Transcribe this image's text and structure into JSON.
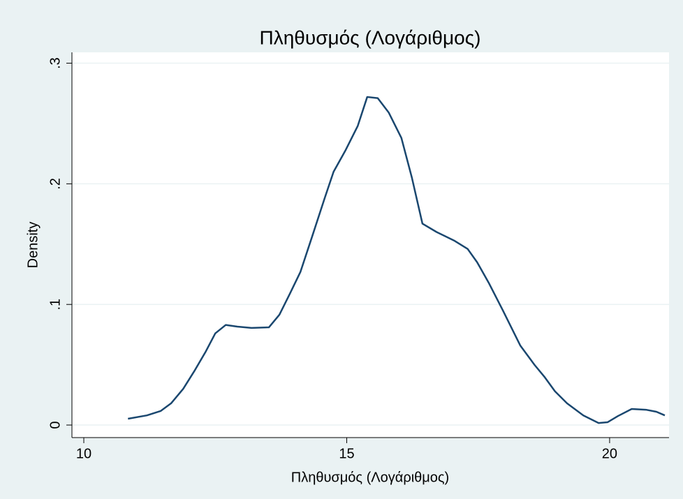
{
  "chart_data": {
    "type": "line",
    "title": "Πληθυσμός (Λογάριθμος)",
    "x_label": "Πληθυσμός (Λογάριθμος)",
    "y_label": "Density",
    "x": [
      10.84,
      11.2,
      11.46,
      11.66,
      11.89,
      12.1,
      12.32,
      12.5,
      12.7,
      12.92,
      13.19,
      13.52,
      13.72,
      13.92,
      14.12,
      14.34,
      14.58,
      14.75,
      14.98,
      15.21,
      15.39,
      15.59,
      15.8,
      16.04,
      16.24,
      16.44,
      16.71,
      17.04,
      17.3,
      17.48,
      17.7,
      17.97,
      18.3,
      18.57,
      18.76,
      18.96,
      19.19,
      19.5,
      19.79,
      19.96,
      20.16,
      20.42,
      20.69,
      20.89,
      21.05
    ],
    "series": [
      {
        "name": "Density",
        "color": "#1a476f",
        "values": [
          0.0052,
          0.008,
          0.0116,
          0.018,
          0.03,
          0.0446,
          0.061,
          0.076,
          0.083,
          0.0816,
          0.0805,
          0.081,
          0.0915,
          0.109,
          0.127,
          0.156,
          0.188,
          0.21,
          0.228,
          0.248,
          0.272,
          0.271,
          0.259,
          0.238,
          0.205,
          0.167,
          0.16,
          0.153,
          0.146,
          0.135,
          0.118,
          0.095,
          0.066,
          0.05,
          0.04,
          0.028,
          0.018,
          0.008,
          0.0017,
          0.0023,
          0.0075,
          0.0133,
          0.0127,
          0.011,
          0.008
        ]
      }
    ],
    "xlim": [
      9.774,
      21.13
    ],
    "ylim": [
      -0.0104,
      0.309
    ],
    "xticks": [
      10,
      15,
      20
    ],
    "yticks": [
      0,
      {
        "value": 0.1,
        "label": ".1"
      },
      {
        "value": 0.2,
        "label": ".2"
      },
      {
        "value": 0.3,
        "label": ".3"
      }
    ],
    "grid": true
  }
}
